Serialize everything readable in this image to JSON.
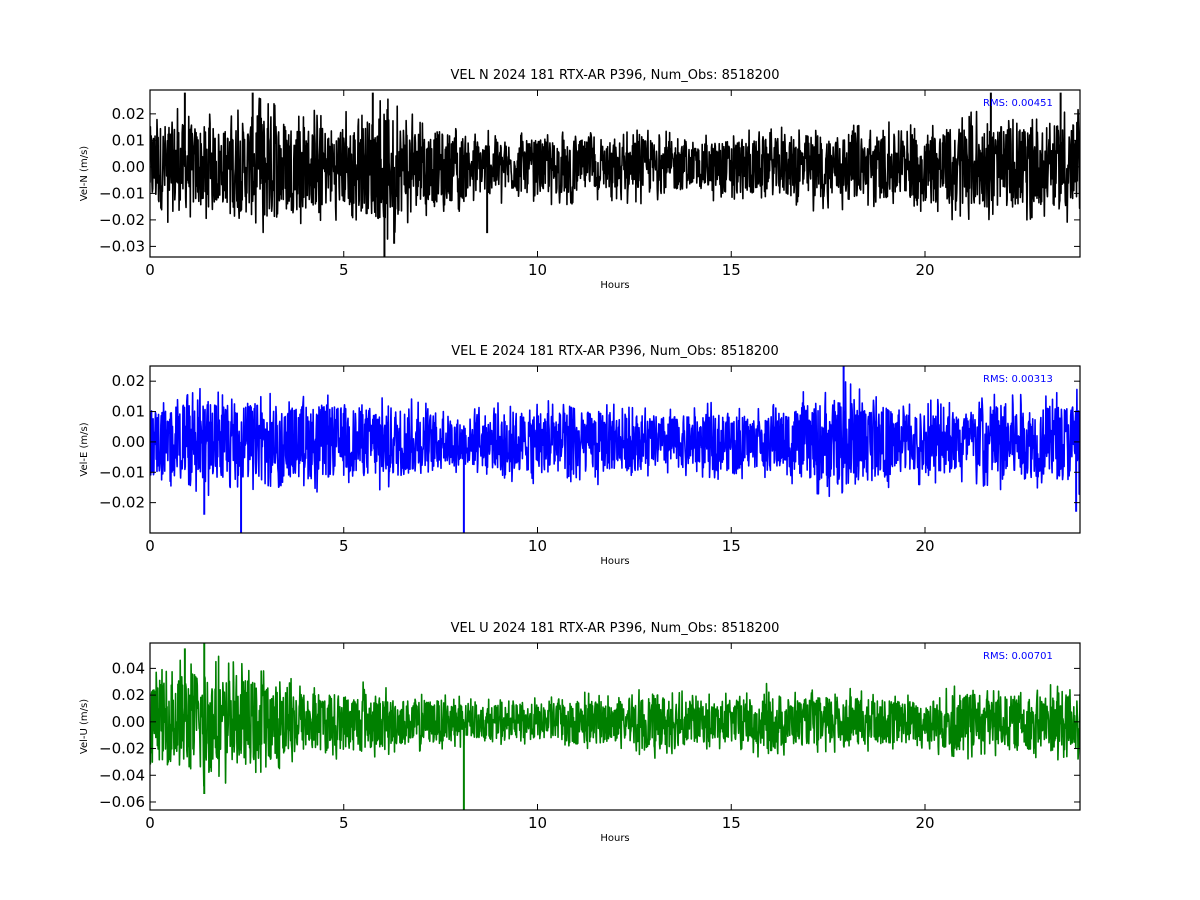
{
  "chart_data": [
    {
      "type": "line",
      "title": "VEL N 2024 181 RTX-AR  P396, Num_Obs: 8518200",
      "xlabel": "Hours",
      "ylabel": "Vel-N (m/s)",
      "xlim": [
        0,
        24
      ],
      "ylim": [
        -0.034,
        0.029
      ],
      "xticks": [
        0,
        5,
        10,
        15,
        20
      ],
      "xtick_labels": [
        "0",
        "5",
        "10",
        "15",
        "20"
      ],
      "yticks": [
        0.02,
        0.01,
        0.0,
        -0.01,
        -0.02,
        -0.03
      ],
      "ytick_labels": [
        "0.02",
        "0.01",
        "0.00",
        "−0.01",
        "−0.02",
        "−0.03"
      ],
      "color": "#000000",
      "grid": false,
      "annotation": "RMS:  0.00451",
      "annotation_color": "#0000ff",
      "x": [
        0,
        0.5,
        1,
        1.5,
        2,
        2.5,
        3,
        3.5,
        4,
        4.5,
        5,
        5.5,
        6,
        6.5,
        7,
        7.5,
        8,
        8.5,
        9,
        9.5,
        10,
        10.5,
        11,
        11.5,
        12,
        12.5,
        13,
        13.5,
        14,
        14.5,
        15,
        15.5,
        16,
        16.5,
        17,
        17.5,
        18,
        18.5,
        19,
        19.5,
        20,
        20.5,
        21,
        21.5,
        22,
        22.5,
        23,
        23.5,
        24
      ],
      "envelope": [
        0.016,
        0.018,
        0.017,
        0.016,
        0.015,
        0.019,
        0.022,
        0.019,
        0.017,
        0.016,
        0.016,
        0.018,
        0.022,
        0.018,
        0.015,
        0.014,
        0.013,
        0.011,
        0.011,
        0.01,
        0.011,
        0.011,
        0.011,
        0.01,
        0.01,
        0.011,
        0.011,
        0.01,
        0.008,
        0.01,
        0.011,
        0.011,
        0.011,
        0.012,
        0.013,
        0.013,
        0.013,
        0.012,
        0.013,
        0.013,
        0.014,
        0.015,
        0.017,
        0.016,
        0.016,
        0.016,
        0.015,
        0.017,
        0.018
      ],
      "spikes": [
        {
          "x": 0.9,
          "y": 0.028
        },
        {
          "x": 2.65,
          "y": 0.028
        },
        {
          "x": 5.75,
          "y": 0.028
        },
        {
          "x": 6.05,
          "y": -0.034
        },
        {
          "x": 6.3,
          "y": -0.029
        },
        {
          "x": 8.7,
          "y": -0.025
        },
        {
          "x": 21.7,
          "y": 0.028
        },
        {
          "x": 23.5,
          "y": 0.028
        }
      ]
    },
    {
      "type": "line",
      "title": "VEL E 2024 181 RTX-AR  P396, Num_Obs: 8518200",
      "xlabel": "Hours",
      "ylabel": "Vel-E (m/s)",
      "xlim": [
        0,
        24
      ],
      "ylim": [
        -0.03,
        0.025
      ],
      "xticks": [
        0,
        5,
        10,
        15,
        20
      ],
      "xtick_labels": [
        "0",
        "5",
        "10",
        "15",
        "20"
      ],
      "yticks": [
        0.02,
        0.01,
        0.0,
        -0.01,
        -0.02
      ],
      "ytick_labels": [
        "0.02",
        "0.01",
        "0.00",
        "−0.01",
        "−0.02"
      ],
      "color": "#0000ff",
      "grid": false,
      "annotation": "RMS:  0.00313",
      "annotation_color": "#0000ff",
      "x": [
        0,
        0.5,
        1,
        1.5,
        2,
        2.5,
        3,
        3.5,
        4,
        4.5,
        5,
        5.5,
        6,
        6.5,
        7,
        7.5,
        8,
        8.5,
        9,
        9.5,
        10,
        10.5,
        11,
        11.5,
        12,
        12.5,
        13,
        13.5,
        14,
        14.5,
        15,
        15.5,
        16,
        16.5,
        17,
        17.5,
        18,
        18.5,
        19,
        19.5,
        20,
        20.5,
        21,
        21.5,
        22,
        22.5,
        23,
        23.5,
        24
      ],
      "envelope": [
        0.012,
        0.012,
        0.013,
        0.014,
        0.013,
        0.014,
        0.013,
        0.012,
        0.013,
        0.013,
        0.012,
        0.012,
        0.013,
        0.012,
        0.011,
        0.01,
        0.008,
        0.009,
        0.01,
        0.011,
        0.011,
        0.011,
        0.01,
        0.011,
        0.01,
        0.01,
        0.009,
        0.009,
        0.009,
        0.01,
        0.01,
        0.009,
        0.009,
        0.012,
        0.013,
        0.014,
        0.016,
        0.014,
        0.012,
        0.011,
        0.011,
        0.011,
        0.011,
        0.012,
        0.014,
        0.013,
        0.012,
        0.013,
        0.015
      ],
      "spikes": [
        {
          "x": 1.4,
          "y": -0.024
        },
        {
          "x": 2.35,
          "y": -0.03
        },
        {
          "x": 8.1,
          "y": -0.03
        },
        {
          "x": 17.9,
          "y": 0.025
        },
        {
          "x": 23.9,
          "y": -0.023
        }
      ]
    },
    {
      "type": "line",
      "title": "VEL U 2024 181 RTX-AR  P396, Num_Obs: 8518200",
      "xlabel": "Hours",
      "ylabel": "Vel-U (m/s)",
      "xlim": [
        0,
        24
      ],
      "ylim": [
        -0.066,
        0.059
      ],
      "xticks": [
        0,
        5,
        10,
        15,
        20
      ],
      "xtick_labels": [
        "0",
        "5",
        "10",
        "15",
        "20"
      ],
      "yticks": [
        0.04,
        0.02,
        0.0,
        -0.02,
        -0.04,
        -0.06
      ],
      "ytick_labels": [
        "0.04",
        "0.02",
        "0.00",
        "−0.02",
        "−0.04",
        "−0.06"
      ],
      "color": "#008000",
      "grid": false,
      "annotation": "RMS:  0.00701",
      "annotation_color": "#0000ff",
      "x": [
        0,
        0.5,
        1,
        1.5,
        2,
        2.5,
        3,
        3.5,
        4,
        4.5,
        5,
        5.5,
        6,
        6.5,
        7,
        7.5,
        8,
        8.5,
        9,
        9.5,
        10,
        10.5,
        11,
        11.5,
        12,
        12.5,
        13,
        13.5,
        14,
        14.5,
        15,
        15.5,
        16,
        16.5,
        17,
        17.5,
        18,
        18.5,
        19,
        19.5,
        20,
        20.5,
        21,
        21.5,
        22,
        22.5,
        23,
        23.5,
        24
      ],
      "envelope": [
        0.028,
        0.032,
        0.04,
        0.042,
        0.035,
        0.034,
        0.03,
        0.028,
        0.024,
        0.023,
        0.022,
        0.024,
        0.02,
        0.018,
        0.018,
        0.017,
        0.016,
        0.013,
        0.013,
        0.014,
        0.014,
        0.015,
        0.018,
        0.017,
        0.016,
        0.018,
        0.022,
        0.02,
        0.017,
        0.016,
        0.017,
        0.018,
        0.024,
        0.019,
        0.018,
        0.02,
        0.02,
        0.018,
        0.017,
        0.017,
        0.016,
        0.022,
        0.024,
        0.02,
        0.02,
        0.021,
        0.023,
        0.024,
        0.023
      ],
      "spikes": [
        {
          "x": 0.9,
          "y": 0.055
        },
        {
          "x": 1.4,
          "y": 0.059
        },
        {
          "x": 1.4,
          "y": -0.054
        },
        {
          "x": 8.1,
          "y": -0.066
        }
      ]
    }
  ]
}
